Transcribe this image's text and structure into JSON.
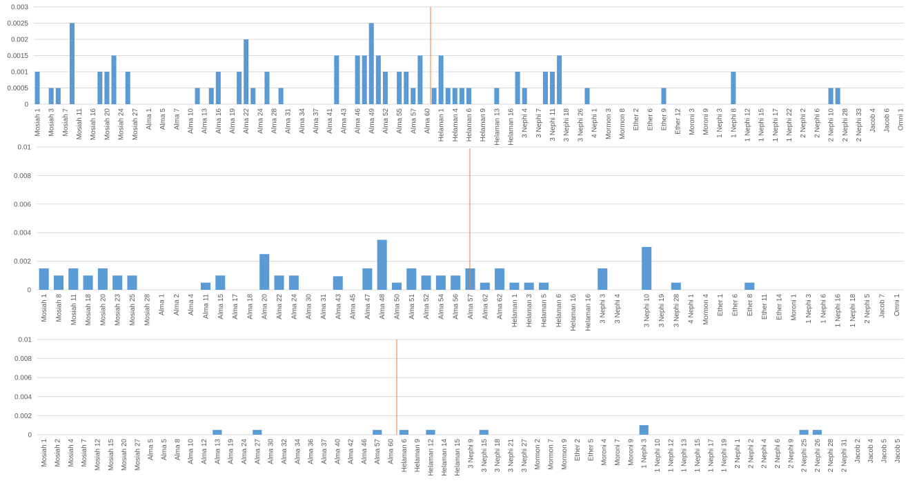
{
  "chart_data": [
    {
      "type": "bar",
      "color": "#5b9bd5",
      "grid": true,
      "ylim": [
        0,
        0.003
      ],
      "yticks": [
        0,
        0.0005,
        0.001,
        0.0015,
        0.002,
        0.0025,
        0.003
      ],
      "categories": [
        "Mosiah 1",
        null,
        "Mosiah 3",
        null,
        "Mosiah 7",
        null,
        "Mosiah 11",
        null,
        "Mosiah 16",
        null,
        "Mosiah 20",
        null,
        "Mosiah 24",
        null,
        "Mosiah 27",
        null,
        "Alma 1",
        null,
        "Alma 5",
        null,
        "Alma 7",
        null,
        "Alma 10",
        null,
        "Alma 13",
        null,
        "Alma 16",
        null,
        "Alma 19",
        null,
        "Alma 22",
        null,
        "Alma 24",
        null,
        "Alma 28",
        null,
        "Alma 31",
        null,
        "Alma 34",
        null,
        "Alma 37",
        null,
        "Alma 41",
        null,
        "Alma 43",
        null,
        "Alma 46",
        null,
        "Alma 49",
        null,
        "Alma 52",
        null,
        "Alma 55",
        null,
        "Alma 57",
        null,
        "Alma 60",
        null,
        "Helaman 1",
        null,
        "Helaman 4",
        null,
        "Helaman 6",
        null,
        "Helaman 9",
        null,
        "Helaman 13",
        null,
        "Helaman 16",
        null,
        "3 Nephi 4",
        null,
        "3 Nephi 7",
        null,
        "3 Nephi 11",
        null,
        "3 Nephi 18",
        null,
        "3 Nephi 26",
        null,
        "4 Nephi 1",
        null,
        "Mormon 3",
        null,
        "Mormon 8",
        null,
        "Ether 2",
        null,
        "Ether 6",
        null,
        "Ether 9",
        null,
        "Ether 12",
        null,
        "Moroni 3",
        null,
        "Moroni 9",
        null,
        "1 Nephi 3",
        null,
        "1 Nephi 8",
        null,
        "1 Nephi 12",
        null,
        "1 Nephi 15",
        null,
        "1 Nephi 17",
        null,
        "1 Nephi 22",
        null,
        "2 Nephi 2",
        null,
        "2 Nephi 6",
        null,
        "2 Nephi 10",
        null,
        "2 Nephi 28",
        null,
        "2 Nephi 33",
        null,
        "Jacob 4",
        null,
        "Jacob 6",
        null,
        "Omni 1"
      ],
      "values": [
        0.001,
        0,
        0.0005,
        0.0005,
        0,
        0.0025,
        0,
        0,
        0,
        0.001,
        0.001,
        0.0015,
        0,
        0.001,
        0,
        0,
        0,
        0,
        0,
        0,
        0,
        0,
        0,
        0.0005,
        0,
        0.0005,
        0.001,
        0,
        0,
        0.001,
        0.002,
        0.0005,
        0,
        0.001,
        0,
        0.0005,
        0,
        0,
        0,
        0,
        0,
        0,
        0,
        0.0015,
        0,
        0,
        0.0015,
        0.0015,
        0.0025,
        0.0015,
        0.001,
        0,
        0.001,
        0.001,
        0.0005,
        0.0015,
        0,
        0.0005,
        0.0015,
        0.0005,
        0.0005,
        0.0005,
        0.0005,
        0,
        0,
        0,
        0.0005,
        0,
        0,
        0.001,
        0.0005,
        0,
        0,
        0.001,
        0.001,
        0.0015,
        0,
        0,
        0,
        0.0005,
        0,
        0,
        0,
        0,
        0,
        0,
        0,
        0,
        0,
        0,
        0.0005,
        0,
        0,
        0,
        0,
        0,
        0,
        0,
        0,
        0,
        0.001,
        0,
        0,
        0,
        0,
        0,
        0,
        0,
        0,
        0,
        0,
        0,
        0,
        0,
        0.0005,
        0.0005,
        0,
        0,
        0,
        0,
        0,
        0,
        0,
        0,
        0
      ]
    },
    {
      "type": "bar",
      "color": "#5b9bd5",
      "grid": true,
      "ylim": [
        0,
        0.01
      ],
      "yticks": [
        0,
        0.002,
        0.004,
        0.006,
        0.008,
        0.01
      ],
      "categories": [
        "Mosiah 1",
        "Mosiah 8",
        "Mosiah 11",
        "Mosiah 18",
        "Mosiah 20",
        "Mosiah 23",
        "Mosiah 25",
        "Mosiah 28",
        "Alma 1",
        "Alma 2",
        "Alma 4",
        "Alma 11",
        "Alma 15",
        "Alma 17",
        "Alma 18",
        "Alma 20",
        "Alma 22",
        "Alma 24",
        "Alma 30",
        "Alma 31",
        "Alma 43",
        "Alma 45",
        "Alma 47",
        "Alma 48",
        "Alma 50",
        "Alma 51",
        "Alma 52",
        "Alma 54",
        "Alma 56",
        "Alma 57",
        "Alma 62",
        "Alma 62",
        "Helaman 1",
        "Helaman 3",
        "Helaman 5",
        "Helaman 6",
        "Helaman 16",
        "Helaman 16",
        "3 Nephi 3",
        "3 Nephi 4",
        null,
        "3 Nephi 10",
        "3 Nephi 19",
        "3 Nephi 28",
        "4 Nephi 1",
        "Mormon 4",
        "Ether 1",
        "Ether 6",
        "Ether 8",
        "Ether 11",
        "Ether 14",
        "Moroni 1",
        "1 Nephi 3",
        "1 Nephi 6",
        "1 Nephi 16",
        "1 Nephi 18",
        "2 Nephi 5",
        "Jacob 7",
        "Omni 1"
      ],
      "values": [
        0.0015,
        0.001,
        0.0015,
        0.001,
        0.0015,
        0.001,
        0.001,
        0,
        0,
        0,
        0,
        0.0005,
        0.001,
        0,
        0,
        0.0025,
        0.001,
        0.001,
        0,
        0,
        0.00095,
        0,
        0.0015,
        0.0035,
        0.0005,
        0.0015,
        0.001,
        0.001,
        0.001,
        0.0015,
        0.0005,
        0.0015,
        0.0005,
        0.0005,
        0.0005,
        0,
        0,
        0,
        0.0015,
        0,
        0,
        0.003,
        0,
        0.0005,
        0,
        0,
        0,
        0,
        0.0005,
        0,
        0,
        0,
        0,
        0,
        0,
        0,
        0,
        0,
        0
      ]
    },
    {
      "type": "bar",
      "color": "#5b9bd5",
      "grid": true,
      "ylim": [
        0,
        0.01
      ],
      "yticks": [
        0,
        0.002,
        0.004,
        0.006,
        0.008,
        0.01
      ],
      "categories": [
        "Mosiah 1",
        "Mosiah 2",
        "Mosiah 4",
        "Mosiah 7",
        "Mosiah 12",
        "Mosiah 15",
        "Mosiah 20",
        "Mosiah 27",
        "Alma 5",
        "Alma 5",
        "Alma 8",
        "Alma 10",
        "Alma 12",
        "Alma 13",
        "Alma 19",
        "Alma 24",
        "Alma 27",
        "Alma 30",
        "Alma 32",
        "Alma 34",
        "Alma 36",
        "Alma 37",
        "Alma 40",
        "Alma 42",
        "Alma 46",
        "Alma 57",
        "Alma 60",
        "Helaman 6",
        "Helaman 9",
        "Helaman 12",
        "Helaman 14",
        "Helaman 15",
        "3 Nephi 9",
        "3 Nephi 15",
        "3 Nephi 18",
        "3 Nephi 21",
        "3 Nephi 27",
        "Mormon 2",
        "Mormon 7",
        "Mormon 9",
        "Ether 2",
        "Ether 5",
        "Moroni 4",
        "Moroni 7",
        "Moroni 9",
        "1 Nephi 3",
        "1 Nephi 10",
        "1 Nephi 12",
        "1 Nephi 13",
        "1 Nephi 15",
        "1 Nephi 17",
        "1 Nephi 19",
        "2 Nephi 1",
        "2 Nephi 2",
        "2 Nephi 4",
        "2 Nephi 6",
        "2 Nephi 9",
        "2 Nephi 25",
        "2 Nephi 26",
        "2 Nephi 28",
        "2 Nephi 31",
        "Jacob 2",
        "Jacob 4",
        "Jacob 5",
        "Jacob 5"
      ],
      "values": [
        0,
        0,
        0,
        0,
        0,
        0,
        0,
        0,
        0,
        0,
        0,
        0,
        0,
        0.0005,
        0,
        0,
        0.0005,
        0,
        0,
        0,
        0,
        0,
        0,
        0,
        0,
        0.0005,
        0,
        0.0005,
        0,
        0.0005,
        0,
        0,
        0,
        0.0005,
        0,
        0,
        0,
        0,
        0,
        0,
        0,
        0,
        0,
        0,
        0,
        0.001,
        0,
        0,
        0,
        0,
        0,
        0,
        0,
        0,
        0,
        0,
        0,
        0.0005,
        0.0005,
        0,
        0,
        0,
        0,
        0,
        0
      ]
    }
  ]
}
